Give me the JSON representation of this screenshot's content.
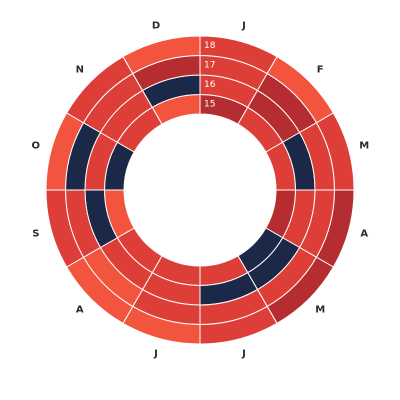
{
  "chart_data": {
    "type": "heatmap",
    "layout": "radial",
    "months": [
      "J",
      "F",
      "M",
      "A",
      "M",
      "J",
      "J",
      "A",
      "S",
      "O",
      "N",
      "D"
    ],
    "rings": [
      "15",
      "16",
      "17",
      "18"
    ],
    "levels": [
      "low",
      "mid",
      "high",
      "extreme"
    ],
    "colors": {
      "low": "#f2543d",
      "mid": "#dd3f38",
      "high": "#b52d30",
      "extreme": "#1b2847"
    },
    "grid": true,
    "values": [
      {
        "ring": "15",
        "levels": [
          "high",
          "mid",
          "mid",
          "high",
          "extreme",
          "mid",
          "mid",
          "mid",
          "low",
          "extreme",
          "mid",
          "low"
        ]
      },
      {
        "ring": "16",
        "levels": [
          "mid",
          "high",
          "extreme",
          "mid",
          "extreme",
          "extreme",
          "mid",
          "mid",
          "extreme",
          "mid",
          "mid",
          "extreme"
        ]
      },
      {
        "ring": "17",
        "levels": [
          "mid",
          "high",
          "mid",
          "mid",
          "mid",
          "mid",
          "mid",
          "low",
          "mid",
          "extreme",
          "mid",
          "high"
        ]
      },
      {
        "ring": "18",
        "levels": [
          "mid",
          "low",
          "mid",
          "high",
          "high",
          "mid",
          "low",
          "low",
          "mid",
          "low",
          "mid",
          "low"
        ]
      }
    ]
  }
}
